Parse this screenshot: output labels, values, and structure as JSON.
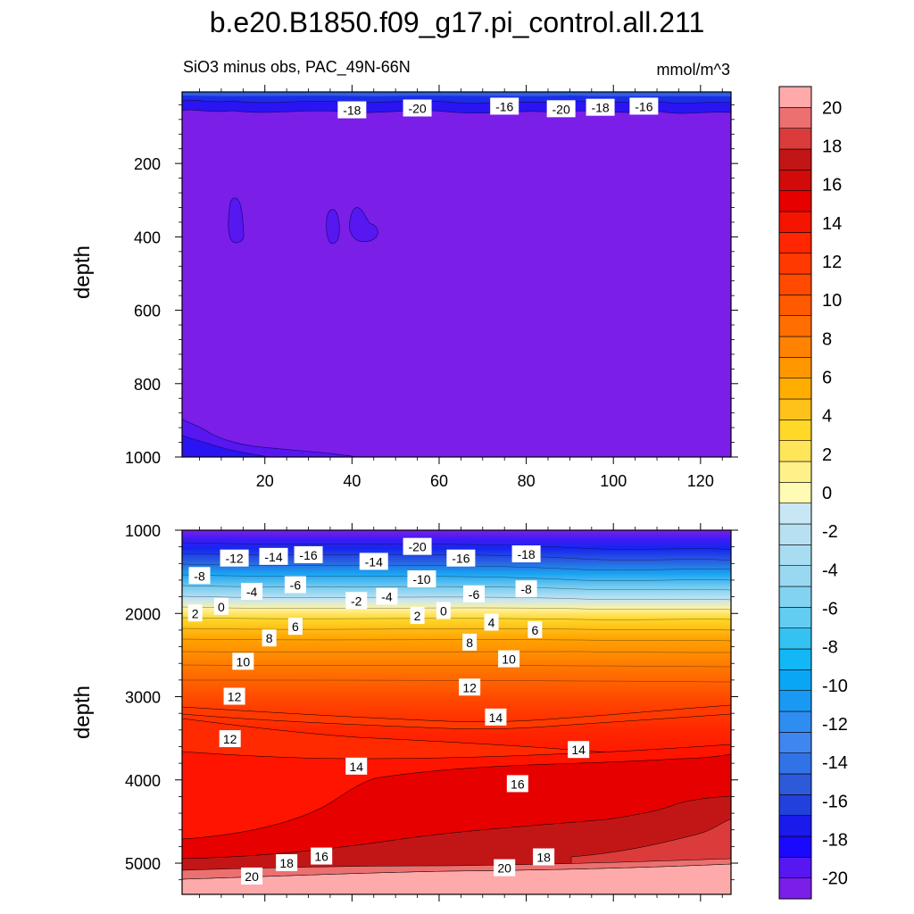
{
  "figure_title": "b.e20.B1850.f09_g17.pi_control.all.211",
  "chart_data": [
    {
      "type": "contour",
      "panel": "upper",
      "subtitle_left": "SiO3 minus obs, PAC_49N-66N",
      "subtitle_right": "mmol/m^3",
      "xlabel": "",
      "ylabel": "depth",
      "xlim": [
        1,
        127
      ],
      "ylim": [
        1000,
        5
      ],
      "x_ticks": [
        20,
        40,
        60,
        80,
        100,
        120
      ],
      "x_tick_labels": [
        "20",
        "40",
        "60",
        "80",
        "100",
        "120"
      ],
      "y_ticks": [
        200,
        400,
        600,
        800,
        1000
      ],
      "y_tick_labels": [
        "200",
        "400",
        "600",
        "800",
        "1000"
      ],
      "background_level": -20,
      "contour_labels": [
        {
          "text": "-18",
          "x": 40,
          "y": 55
        },
        {
          "text": "-20",
          "x": 55,
          "y": 50
        },
        {
          "text": "-16",
          "x": 75,
          "y": 45
        },
        {
          "text": "-20",
          "x": 88,
          "y": 52
        },
        {
          "text": "-18",
          "x": 97,
          "y": 48
        },
        {
          "text": "-16",
          "x": 107,
          "y": 45
        }
      ]
    },
    {
      "type": "contour",
      "panel": "lower",
      "subtitle_left": "",
      "subtitle_right": "",
      "xlabel": "",
      "ylabel": "depth",
      "xlim": [
        1,
        127
      ],
      "ylim": [
        5375,
        1000
      ],
      "x_ticks": [
        20,
        40,
        60,
        80,
        100,
        120
      ],
      "x_tick_labels": [
        "",
        "",
        "",
        "",
        "",
        ""
      ],
      "y_ticks": [
        1000,
        2000,
        3000,
        4000,
        5000
      ],
      "y_tick_labels": [
        "1000",
        "2000",
        "3000",
        "4000",
        "5000"
      ],
      "contour_labels": [
        {
          "text": "-12",
          "x": 13,
          "y": 1340
        },
        {
          "text": "-14",
          "x": 22,
          "y": 1320
        },
        {
          "text": "-16",
          "x": 30,
          "y": 1300
        },
        {
          "text": "-14",
          "x": 45,
          "y": 1380
        },
        {
          "text": "-20",
          "x": 55,
          "y": 1200
        },
        {
          "text": "-16",
          "x": 65,
          "y": 1340
        },
        {
          "text": "-18",
          "x": 80,
          "y": 1290
        },
        {
          "text": "-8",
          "x": 5,
          "y": 1550
        },
        {
          "text": "-4",
          "x": 17,
          "y": 1740
        },
        {
          "text": "-6",
          "x": 27,
          "y": 1660
        },
        {
          "text": "-10",
          "x": 56,
          "y": 1590
        },
        {
          "text": "-4",
          "x": 48,
          "y": 1800
        },
        {
          "text": "-2",
          "x": 41,
          "y": 1850
        },
        {
          "text": "-6",
          "x": 68,
          "y": 1770
        },
        {
          "text": "-8",
          "x": 80,
          "y": 1710
        },
        {
          "text": "2",
          "x": 4,
          "y": 2000
        },
        {
          "text": "0",
          "x": 10,
          "y": 1920
        },
        {
          "text": "2",
          "x": 55,
          "y": 2030
        },
        {
          "text": "0",
          "x": 61,
          "y": 1970
        },
        {
          "text": "4",
          "x": 72,
          "y": 2110
        },
        {
          "text": "6",
          "x": 27,
          "y": 2160
        },
        {
          "text": "6",
          "x": 82,
          "y": 2200
        },
        {
          "text": "8",
          "x": 21,
          "y": 2300
        },
        {
          "text": "8",
          "x": 67,
          "y": 2350
        },
        {
          "text": "10",
          "x": 15,
          "y": 2580
        },
        {
          "text": "10",
          "x": 76,
          "y": 2550
        },
        {
          "text": "12",
          "x": 67,
          "y": 2890
        },
        {
          "text": "12",
          "x": 13,
          "y": 3000
        },
        {
          "text": "14",
          "x": 73,
          "y": 3250
        },
        {
          "text": "12",
          "x": 12,
          "y": 3510
        },
        {
          "text": "14",
          "x": 92,
          "y": 3640
        },
        {
          "text": "14",
          "x": 41,
          "y": 3840
        },
        {
          "text": "16",
          "x": 78,
          "y": 4050
        },
        {
          "text": "16",
          "x": 33,
          "y": 4920
        },
        {
          "text": "18",
          "x": 25,
          "y": 5000
        },
        {
          "text": "18",
          "x": 84,
          "y": 4930
        },
        {
          "text": "20",
          "x": 75,
          "y": 5060
        },
        {
          "text": "20",
          "x": 17,
          "y": 5160
        }
      ]
    }
  ],
  "colorbar": {
    "levels": [
      -20,
      -18,
      -16,
      -14,
      -12,
      -10,
      -8,
      -6,
      -4,
      -2,
      0,
      2,
      4,
      6,
      8,
      10,
      12,
      14,
      16,
      18,
      20
    ],
    "colors": [
      "#7b1ee8",
      "#5717f0",
      "#1b08ff",
      "#1a1aeb",
      "#2240dc",
      "#2d5ad9",
      "#3173e6",
      "#3f86f0",
      "#2f8df2",
      "#1a99f4",
      "#0aa6f6",
      "#12b8f5",
      "#33c2f2",
      "#62cdf0",
      "#82d3f2",
      "#99d8f0",
      "#a8dcf0",
      "#b7e0f2",
      "#c9e6f5",
      "#fffab4",
      "#fff08a",
      "#ffe55a",
      "#ffd828",
      "#ffc21a",
      "#ffae00",
      "#ff9800",
      "#ff8200",
      "#ff6e00",
      "#ff5a00",
      "#ff4a00",
      "#ff3a00",
      "#ff2600",
      "#f51400",
      "#e60000",
      "#d20a0a",
      "#c21616",
      "#db3b3b",
      "#ec7070",
      "#ffaaaa"
    ],
    "tick_labels": [
      "20",
      "18",
      "16",
      "14",
      "12",
      "10",
      "8",
      "6",
      "4",
      "2",
      "0",
      "-2",
      "-4",
      "-6",
      "-8",
      "-10",
      "-12",
      "-14",
      "-16",
      "-18",
      "-20"
    ]
  }
}
